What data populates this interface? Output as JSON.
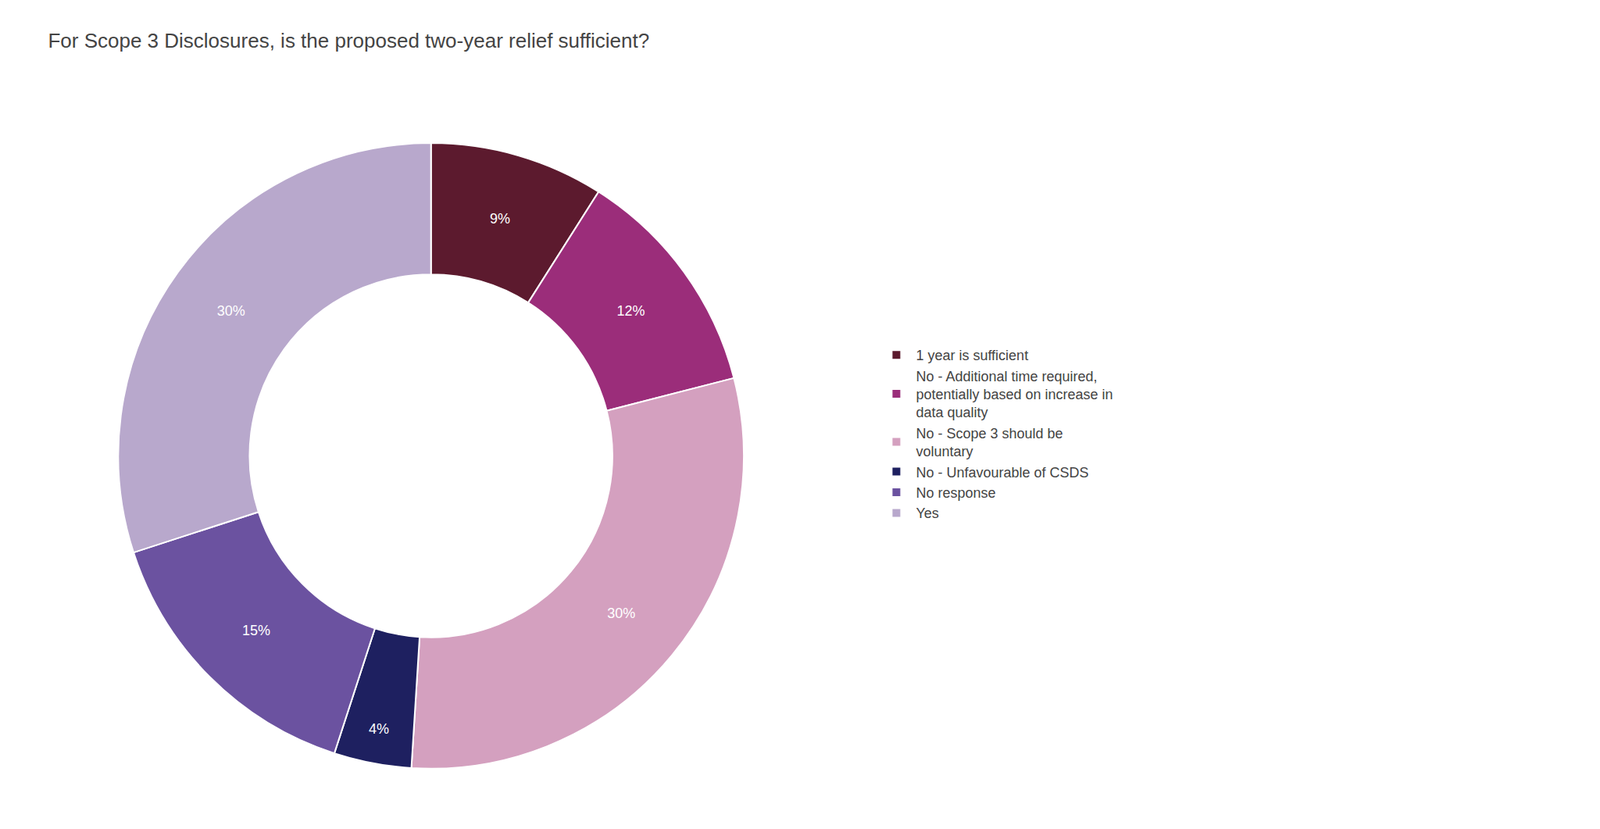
{
  "chart_data": {
    "type": "donut",
    "title": "For Scope 3 Disclosures, is the proposed two-year relief sufficient?",
    "categories": [
      "1 year is sufficient",
      "No - Additional time required,\npotentially based on increase in\ndata quality",
      "No - Scope 3 should be\nvoluntary",
      "No - Unfavourable of CSDS",
      "No response",
      "Yes"
    ],
    "values": [
      9,
      12,
      30,
      4,
      15,
      30
    ],
    "value_labels": [
      "9%",
      "12%",
      "30%",
      "4%",
      "15%",
      "30%"
    ],
    "colors": [
      "#5c1a2e",
      "#9b2d7a",
      "#d4a0bf",
      "#1e2060",
      "#6b52a0",
      "#b8a8cc"
    ],
    "data_labels": true,
    "legend": "right"
  }
}
